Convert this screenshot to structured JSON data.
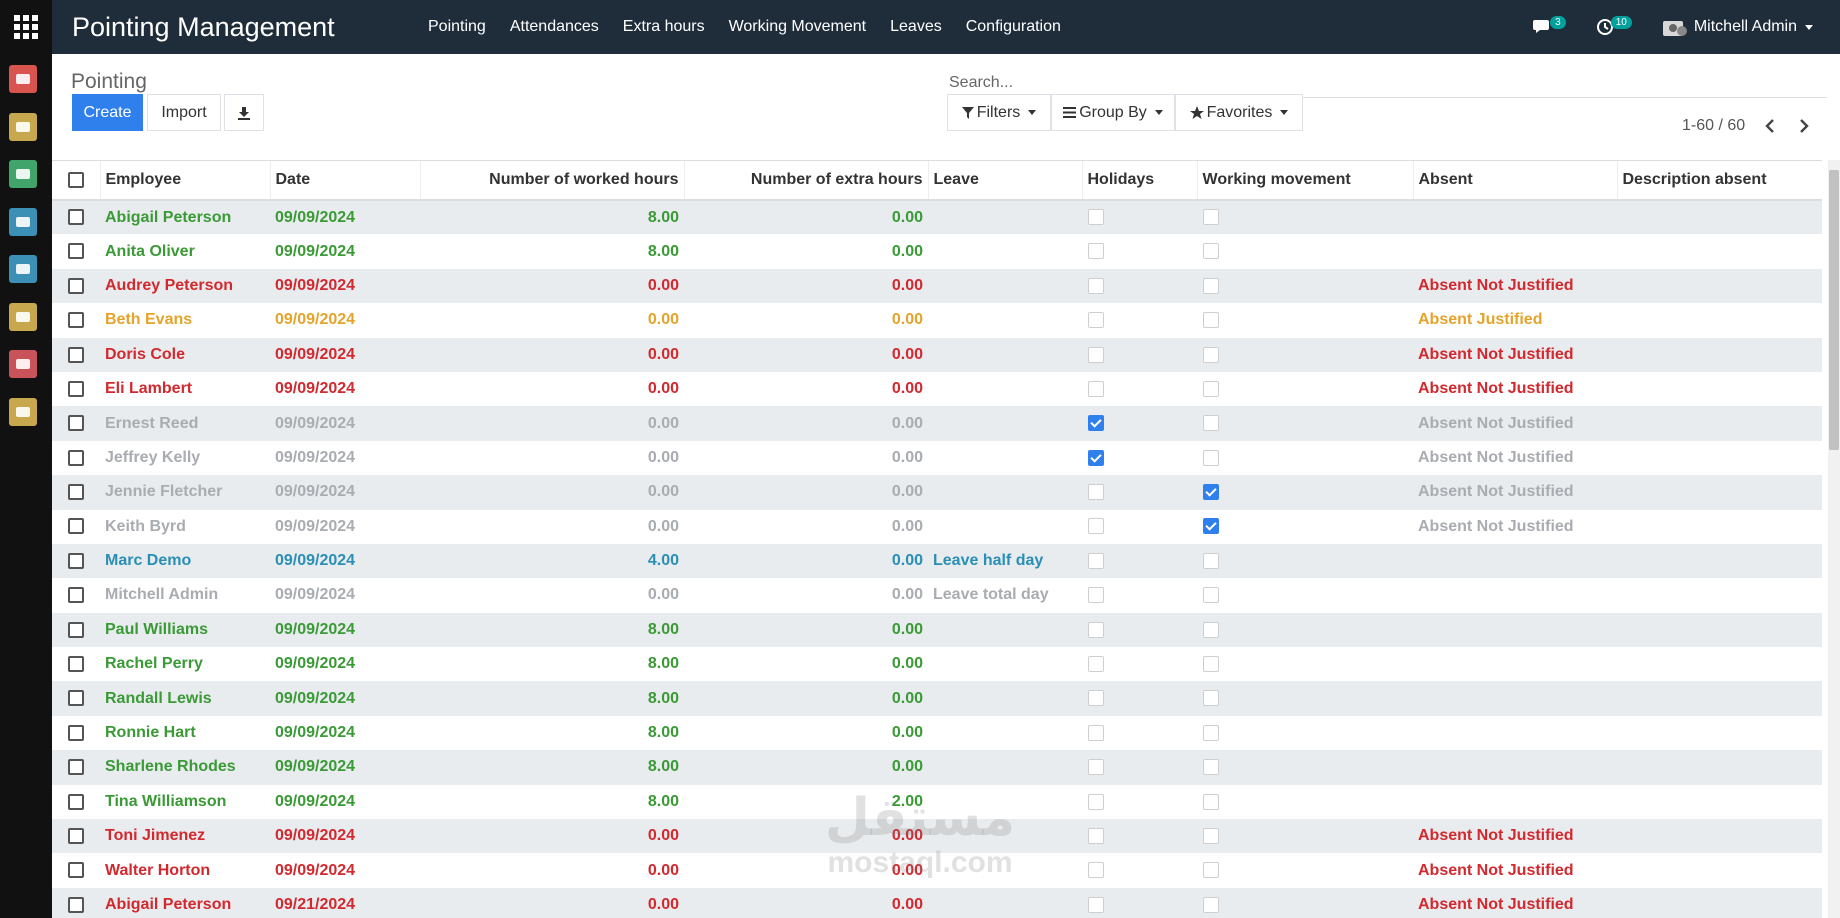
{
  "topbar": {
    "app_title": "Pointing Management",
    "menu": [
      "Pointing",
      "Attendances",
      "Extra hours",
      "Working Movement",
      "Leaves",
      "Configuration"
    ],
    "messages_count": "3",
    "activities_count": "10",
    "user_name": "Mitchell Admin"
  },
  "sidebar": {
    "apps": [
      {
        "icon": "discuss-icon",
        "color": "#d9534f"
      },
      {
        "icon": "calendar-icon",
        "color": "#c8a84e"
      },
      {
        "icon": "spreadsheet-icon",
        "color": "#41a46a"
      },
      {
        "icon": "employees-icon",
        "color": "#3c8fb5"
      },
      {
        "icon": "attendance-icon",
        "color": "#3c8fb5"
      },
      {
        "icon": "user-settings-icon",
        "color": "#c8a84e"
      },
      {
        "icon": "tools-icon",
        "color": "#c9535b"
      },
      {
        "icon": "settings-icon",
        "color": "#c8a84e"
      }
    ]
  },
  "control_panel": {
    "breadcrumb": "Pointing",
    "create_label": "Create",
    "import_label": "Import",
    "search_placeholder": "Search...",
    "filters_label": "Filters",
    "groupby_label": "Group By",
    "favorites_label": "Favorites",
    "pager": "1-60 / 60"
  },
  "table": {
    "columns": [
      "Employee",
      "Date",
      "Number of worked hours",
      "Number of extra hours",
      "Leave",
      "Holidays",
      "Working movement",
      "Absent",
      "Description absent"
    ],
    "rows": [
      {
        "employee": "Abigail Peterson",
        "date": "09/09/2024",
        "worked": "8.00",
        "extra": "0.00",
        "leave": "",
        "holidays": false,
        "movement": false,
        "absent": "",
        "description": "",
        "status": "green"
      },
      {
        "employee": "Anita Oliver",
        "date": "09/09/2024",
        "worked": "8.00",
        "extra": "0.00",
        "leave": "",
        "holidays": false,
        "movement": false,
        "absent": "",
        "description": "",
        "status": "green"
      },
      {
        "employee": "Audrey Peterson",
        "date": "09/09/2024",
        "worked": "0.00",
        "extra": "0.00",
        "leave": "",
        "holidays": false,
        "movement": false,
        "absent": "Absent Not Justified",
        "description": "",
        "status": "red"
      },
      {
        "employee": "Beth Evans",
        "date": "09/09/2024",
        "worked": "0.00",
        "extra": "0.00",
        "leave": "",
        "holidays": false,
        "movement": false,
        "absent": "Absent Justified",
        "description": "",
        "status": "orange"
      },
      {
        "employee": "Doris Cole",
        "date": "09/09/2024",
        "worked": "0.00",
        "extra": "0.00",
        "leave": "",
        "holidays": false,
        "movement": false,
        "absent": "Absent Not Justified",
        "description": "",
        "status": "red"
      },
      {
        "employee": "Eli Lambert",
        "date": "09/09/2024",
        "worked": "0.00",
        "extra": "0.00",
        "leave": "",
        "holidays": false,
        "movement": false,
        "absent": "Absent Not Justified",
        "description": "",
        "status": "red"
      },
      {
        "employee": "Ernest Reed",
        "date": "09/09/2024",
        "worked": "0.00",
        "extra": "0.00",
        "leave": "",
        "holidays": true,
        "movement": false,
        "absent": "Absent Not Justified",
        "description": "",
        "status": "grey"
      },
      {
        "employee": "Jeffrey Kelly",
        "date": "09/09/2024",
        "worked": "0.00",
        "extra": "0.00",
        "leave": "",
        "holidays": true,
        "movement": false,
        "absent": "Absent Not Justified",
        "description": "",
        "status": "grey"
      },
      {
        "employee": "Jennie Fletcher",
        "date": "09/09/2024",
        "worked": "0.00",
        "extra": "0.00",
        "leave": "",
        "holidays": false,
        "movement": true,
        "absent": "Absent Not Justified",
        "description": "",
        "status": "grey"
      },
      {
        "employee": "Keith Byrd",
        "date": "09/09/2024",
        "worked": "0.00",
        "extra": "0.00",
        "leave": "",
        "holidays": false,
        "movement": true,
        "absent": "Absent Not Justified",
        "description": "",
        "status": "grey"
      },
      {
        "employee": "Marc Demo",
        "date": "09/09/2024",
        "worked": "4.00",
        "extra": "0.00",
        "leave": "Leave half day",
        "holidays": false,
        "movement": false,
        "absent": "",
        "description": "",
        "status": "blue"
      },
      {
        "employee": "Mitchell Admin",
        "date": "09/09/2024",
        "worked": "0.00",
        "extra": "0.00",
        "leave": "Leave total day",
        "holidays": false,
        "movement": false,
        "absent": "",
        "description": "",
        "status": "grey"
      },
      {
        "employee": "Paul Williams",
        "date": "09/09/2024",
        "worked": "8.00",
        "extra": "0.00",
        "leave": "",
        "holidays": false,
        "movement": false,
        "absent": "",
        "description": "",
        "status": "green"
      },
      {
        "employee": "Rachel Perry",
        "date": "09/09/2024",
        "worked": "8.00",
        "extra": "0.00",
        "leave": "",
        "holidays": false,
        "movement": false,
        "absent": "",
        "description": "",
        "status": "green"
      },
      {
        "employee": "Randall Lewis",
        "date": "09/09/2024",
        "worked": "8.00",
        "extra": "0.00",
        "leave": "",
        "holidays": false,
        "movement": false,
        "absent": "",
        "description": "",
        "status": "green"
      },
      {
        "employee": "Ronnie Hart",
        "date": "09/09/2024",
        "worked": "8.00",
        "extra": "0.00",
        "leave": "",
        "holidays": false,
        "movement": false,
        "absent": "",
        "description": "",
        "status": "green"
      },
      {
        "employee": "Sharlene Rhodes",
        "date": "09/09/2024",
        "worked": "8.00",
        "extra": "0.00",
        "leave": "",
        "holidays": false,
        "movement": false,
        "absent": "",
        "description": "",
        "status": "green"
      },
      {
        "employee": "Tina Williamson",
        "date": "09/09/2024",
        "worked": "8.00",
        "extra": "2.00",
        "leave": "",
        "holidays": false,
        "movement": false,
        "absent": "",
        "description": "",
        "status": "green"
      },
      {
        "employee": "Toni Jimenez",
        "date": "09/09/2024",
        "worked": "0.00",
        "extra": "0.00",
        "leave": "",
        "holidays": false,
        "movement": false,
        "absent": "Absent Not Justified",
        "description": "",
        "status": "red"
      },
      {
        "employee": "Walter Horton",
        "date": "09/09/2024",
        "worked": "0.00",
        "extra": "0.00",
        "leave": "",
        "holidays": false,
        "movement": false,
        "absent": "Absent Not Justified",
        "description": "",
        "status": "red"
      },
      {
        "employee": "Abigail Peterson",
        "date": "09/21/2024",
        "worked": "0.00",
        "extra": "0.00",
        "leave": "",
        "holidays": false,
        "movement": false,
        "absent": "Absent Not Justified",
        "description": "",
        "status": "red"
      }
    ]
  },
  "watermark": {
    "arabic": "مستقل",
    "latin": "mostaql.com"
  }
}
